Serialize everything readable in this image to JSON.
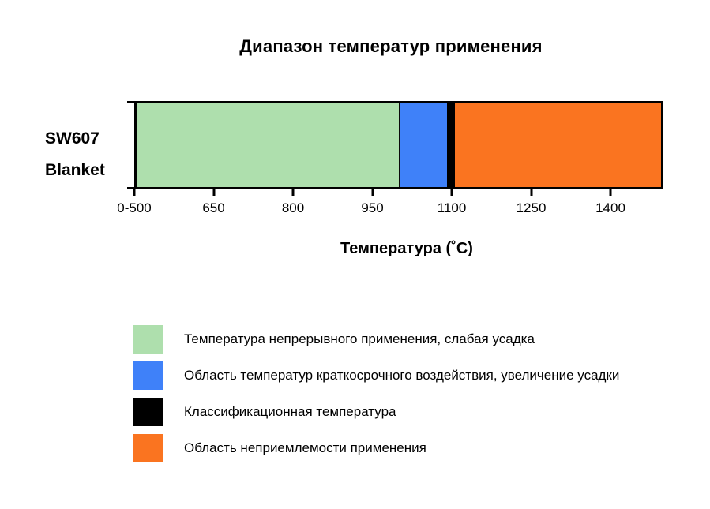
{
  "chart_data": {
    "type": "bar",
    "orientation": "horizontal",
    "title": "Диапазон температур применения",
    "category": "SW607 Blanket",
    "row_label_lines": [
      "SW607",
      "Blanket"
    ],
    "xlabel": "Температура (˚C)",
    "axis_min": 500,
    "axis_max": 1500,
    "tick_values": [
      500,
      650,
      800,
      950,
      1100,
      1250,
      1400
    ],
    "tick_labels": [
      "0-500",
      "650",
      "800",
      "950",
      "1100",
      "1250",
      "1400"
    ],
    "grid": false,
    "legend_position": "bottom-left",
    "segments": [
      {
        "name": "continuous-use-temperature",
        "from": 500,
        "to": 1000,
        "color": "#aedfad",
        "label": "Температура непрерывного применения, слабая усадка"
      },
      {
        "name": "short-term-exposure-range",
        "from": 1000,
        "to": 1092,
        "color": "#3f81f9",
        "label": "Область температур краткосрочного воздействия, увеличение усадки"
      },
      {
        "name": "classification-temperature",
        "from": 1092,
        "to": 1107,
        "color": "#000000",
        "label": "Классификационная температура"
      },
      {
        "name": "unacceptable-application-range",
        "from": 1107,
        "to": 1500,
        "color": "#fa7420",
        "label": "Область неприемлемости применения"
      }
    ],
    "colors": {
      "background": "#ffffff",
      "axis": "#000000",
      "text": "#000000"
    }
  }
}
